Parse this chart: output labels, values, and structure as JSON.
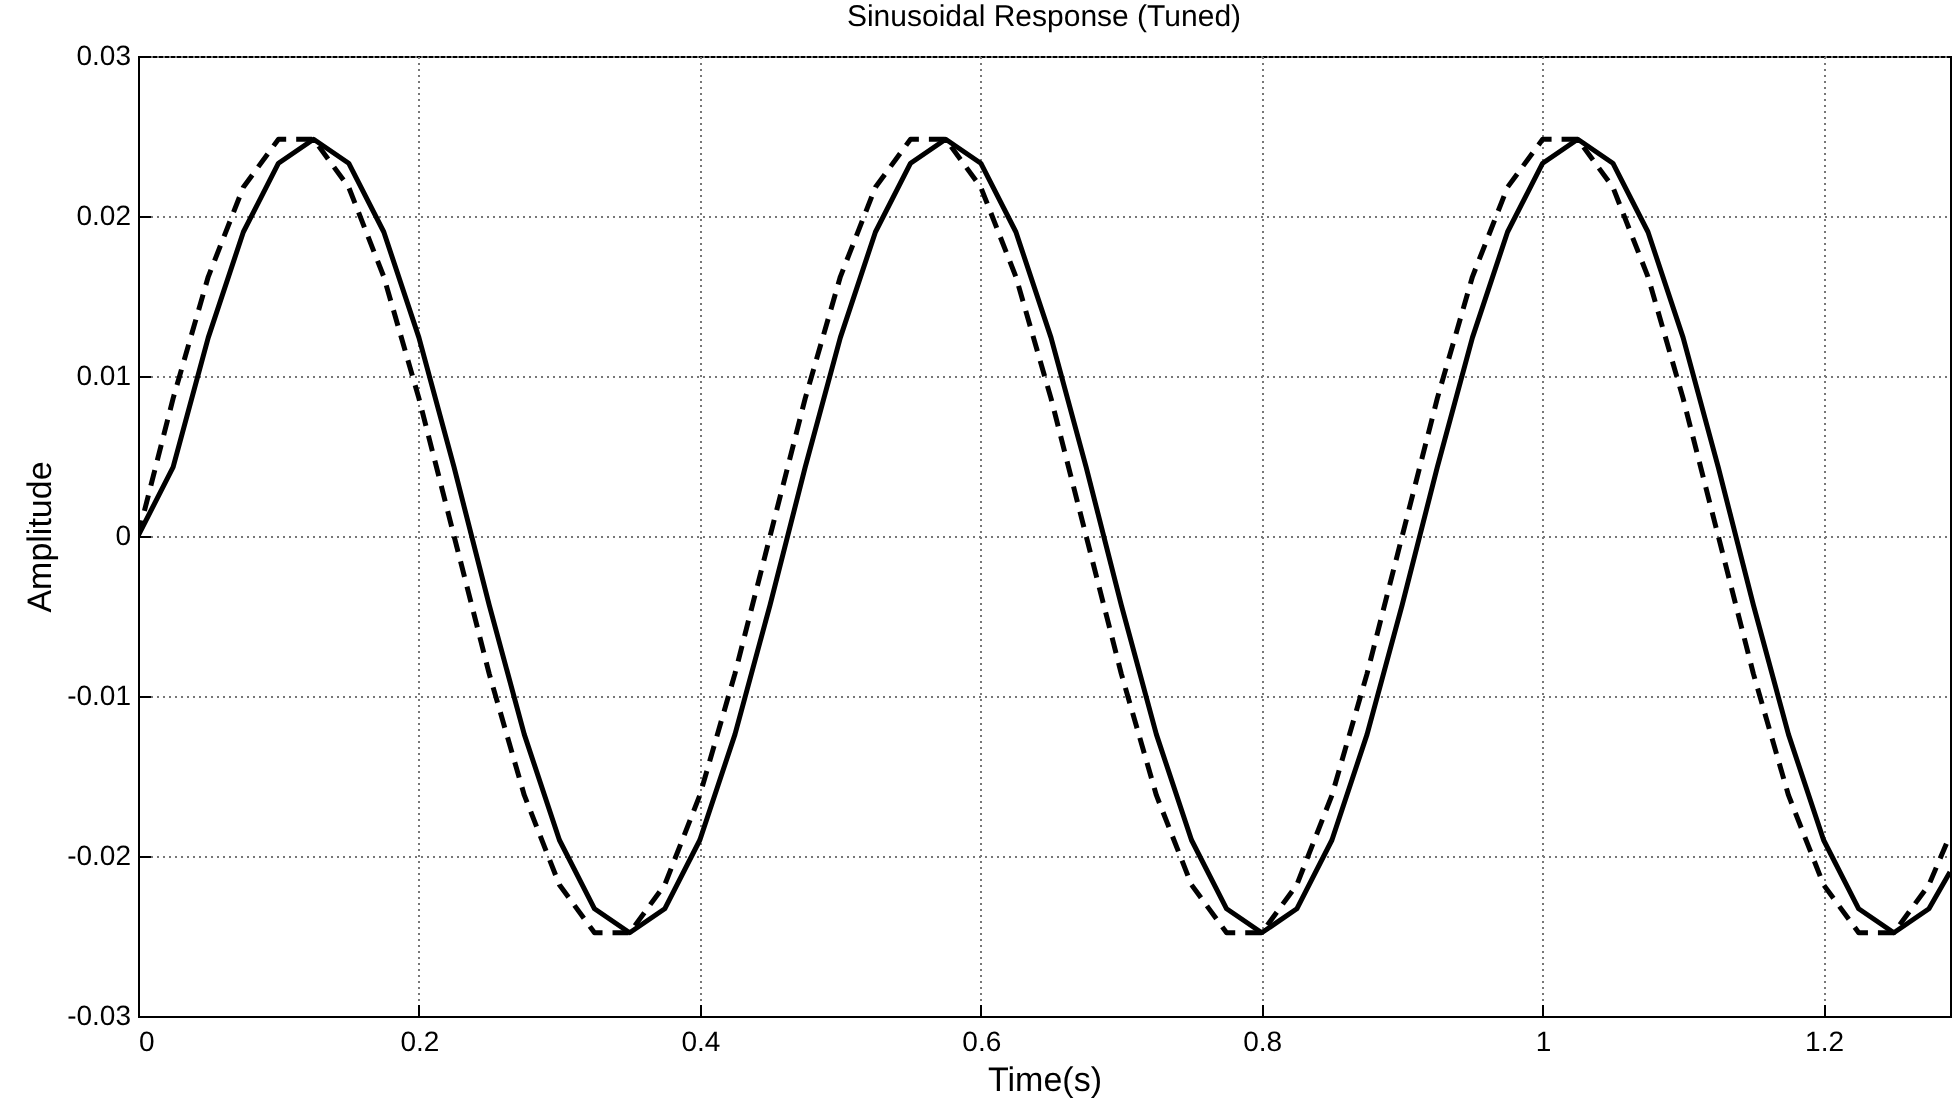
{
  "chart_data": {
    "type": "line",
    "title": "Sinusoidal Response (Tuned)",
    "xlabel": "Time(s)",
    "ylabel": "Amplitude",
    "x": [
      0,
      0.025,
      0.05,
      0.075,
      0.1,
      0.125,
      0.15,
      0.175,
      0.2,
      0.225,
      0.25,
      0.275,
      0.3,
      0.325,
      0.35,
      0.375,
      0.4,
      0.425,
      0.45,
      0.475,
      0.5,
      0.525,
      0.55,
      0.575,
      0.6,
      0.625,
      0.65,
      0.675,
      0.7,
      0.725,
      0.75,
      0.775,
      0.8,
      0.825,
      0.85,
      0.875,
      0.9,
      0.925,
      0.95,
      0.975,
      1,
      1.025,
      1.05,
      1.075,
      1.1,
      1.125,
      1.15,
      1.175,
      1.2,
      1.225,
      1.25,
      1.275,
      1.29
    ],
    "series": [
      {
        "color": "#000000",
        "line_style": "solid",
        "values": [
          0,
          0.0043,
          0.0124,
          0.019,
          0.0233,
          0.0248,
          0.0233,
          0.019,
          0.0124,
          0.0043,
          -0.0043,
          -0.0124,
          -0.019,
          -0.0233,
          -0.0248,
          -0.0233,
          -0.019,
          -0.0124,
          -0.0043,
          0.0043,
          0.0124,
          0.019,
          0.0233,
          0.0248,
          0.0233,
          0.019,
          0.0124,
          0.0043,
          -0.0043,
          -0.0124,
          -0.019,
          -0.0233,
          -0.0248,
          -0.0233,
          -0.019,
          -0.0124,
          -0.0043,
          0.0043,
          0.0124,
          0.019,
          0.0233,
          0.0248,
          0.0233,
          0.019,
          0.0124,
          0.0043,
          -0.0043,
          -0.0124,
          -0.019,
          -0.0233,
          -0.0248,
          -0.0233,
          -0.021
        ]
      },
      {
        "color": "#000000",
        "line_style": "dashed",
        "values": [
          0,
          0.0086,
          0.0162,
          0.0218,
          0.0248,
          0.0248,
          0.0218,
          0.0162,
          0.0086,
          0,
          -0.0086,
          -0.0162,
          -0.0218,
          -0.0248,
          -0.0248,
          -0.0218,
          -0.0162,
          -0.0086,
          0,
          0.0086,
          0.0162,
          0.0218,
          0.0248,
          0.0248,
          0.0218,
          0.0162,
          0.0086,
          0,
          -0.0086,
          -0.0162,
          -0.0218,
          -0.0248,
          -0.0248,
          -0.0218,
          -0.0162,
          -0.0086,
          0,
          0.0086,
          0.0162,
          0.0218,
          0.0248,
          0.0248,
          0.0218,
          0.0162,
          0.0086,
          0,
          -0.0086,
          -0.0162,
          -0.0218,
          -0.0248,
          -0.0248,
          -0.0218,
          -0.0187
        ]
      }
    ],
    "xlim": [
      0,
      1.29
    ],
    "ylim": [
      -0.03,
      0.03
    ],
    "xticks": [
      0,
      0.2,
      0.4,
      0.6,
      0.8,
      1,
      1.2
    ],
    "yticks": [
      -0.03,
      -0.02,
      -0.01,
      0,
      0.01,
      0.02,
      0.03
    ],
    "grid": true
  }
}
